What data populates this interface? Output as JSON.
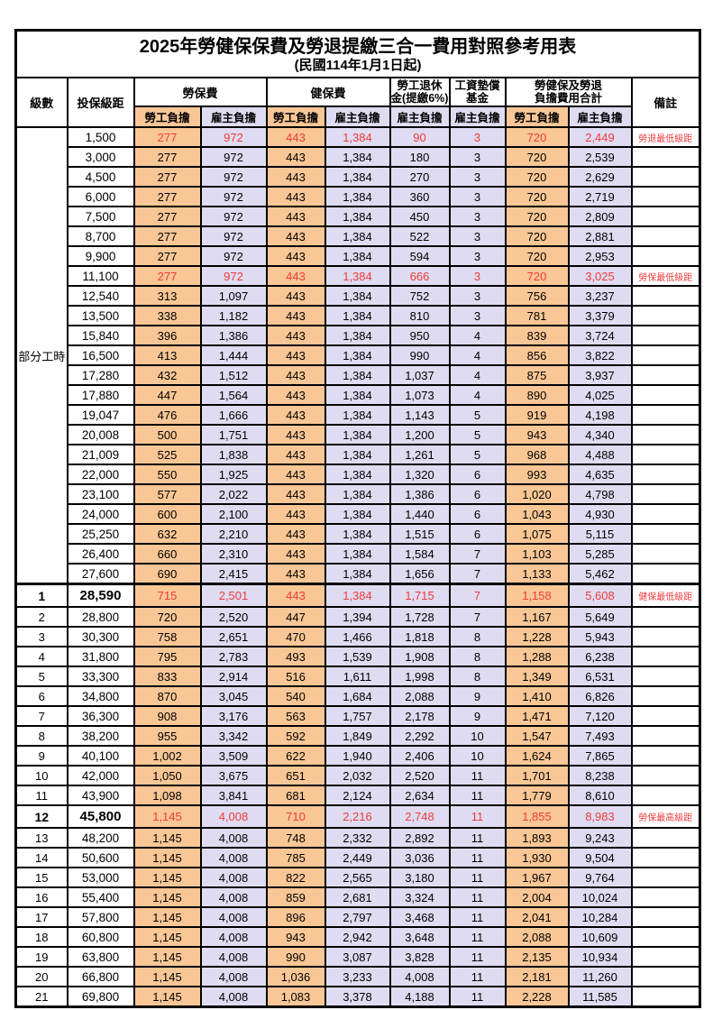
{
  "title": "2025年勞健保保費及勞退提繳三合一費用對照參考用表",
  "subtitle": "(民國114年1月1日起)",
  "header": {
    "level": "級數",
    "bracket": "投保級距",
    "labor_group": "勞保費",
    "health_group": "健保費",
    "pension_line1": "勞工退休",
    "pension_line2": "金(提繳6%)",
    "fund_line1": "工資墊償",
    "fund_line2": "基金",
    "total_line1": "勞健保及勞退",
    "total_line2": "負擔費用合計",
    "remark": "備註",
    "employee": "勞工負擔",
    "employer": "雇主負擔"
  },
  "groups": {
    "part_time_label": "部分工時"
  },
  "part_time_rowspan": 23,
  "colors": {
    "employee_fill": "#F9C795",
    "employer_fill": "#DFDCF1",
    "highlight_red": "#EE3B3B",
    "border": "#000000"
  },
  "rows": [
    {
      "level": "",
      "bracket": "1,500",
      "values": [
        "277",
        "972",
        "443",
        "1,384",
        "90",
        "3",
        "720",
        "2,449"
      ],
      "remark": "勞退最低級距",
      "red": true,
      "bold": false
    },
    {
      "level": "",
      "bracket": "3,000",
      "values": [
        "277",
        "972",
        "443",
        "1,384",
        "180",
        "3",
        "720",
        "2,539"
      ],
      "remark": "",
      "red": false,
      "bold": false
    },
    {
      "level": "",
      "bracket": "4,500",
      "values": [
        "277",
        "972",
        "443",
        "1,384",
        "270",
        "3",
        "720",
        "2,629"
      ],
      "remark": "",
      "red": false,
      "bold": false
    },
    {
      "level": "",
      "bracket": "6,000",
      "values": [
        "277",
        "972",
        "443",
        "1,384",
        "360",
        "3",
        "720",
        "2,719"
      ],
      "remark": "",
      "red": false,
      "bold": false
    },
    {
      "level": "",
      "bracket": "7,500",
      "values": [
        "277",
        "972",
        "443",
        "1,384",
        "450",
        "3",
        "720",
        "2,809"
      ],
      "remark": "",
      "red": false,
      "bold": false
    },
    {
      "level": "",
      "bracket": "8,700",
      "values": [
        "277",
        "972",
        "443",
        "1,384",
        "522",
        "3",
        "720",
        "2,881"
      ],
      "remark": "",
      "red": false,
      "bold": false
    },
    {
      "level": "",
      "bracket": "9,900",
      "values": [
        "277",
        "972",
        "443",
        "1,384",
        "594",
        "3",
        "720",
        "2,953"
      ],
      "remark": "",
      "red": false,
      "bold": false
    },
    {
      "level": "",
      "bracket": "11,100",
      "values": [
        "277",
        "972",
        "443",
        "1,384",
        "666",
        "3",
        "720",
        "3,025"
      ],
      "remark": "勞保最低級距",
      "red": true,
      "bold": false
    },
    {
      "level": "",
      "bracket": "12,540",
      "values": [
        "313",
        "1,097",
        "443",
        "1,384",
        "752",
        "3",
        "756",
        "3,237"
      ],
      "remark": "",
      "red": false,
      "bold": false
    },
    {
      "level": "",
      "bracket": "13,500",
      "values": [
        "338",
        "1,182",
        "443",
        "1,384",
        "810",
        "3",
        "781",
        "3,379"
      ],
      "remark": "",
      "red": false,
      "bold": false
    },
    {
      "level": "",
      "bracket": "15,840",
      "values": [
        "396",
        "1,386",
        "443",
        "1,384",
        "950",
        "4",
        "839",
        "3,724"
      ],
      "remark": "",
      "red": false,
      "bold": false
    },
    {
      "level": "",
      "bracket": "16,500",
      "values": [
        "413",
        "1,444",
        "443",
        "1,384",
        "990",
        "4",
        "856",
        "3,822"
      ],
      "remark": "",
      "red": false,
      "bold": false
    },
    {
      "level": "",
      "bracket": "17,280",
      "values": [
        "432",
        "1,512",
        "443",
        "1,384",
        "1,037",
        "4",
        "875",
        "3,937"
      ],
      "remark": "",
      "red": false,
      "bold": false
    },
    {
      "level": "",
      "bracket": "17,880",
      "values": [
        "447",
        "1,564",
        "443",
        "1,384",
        "1,073",
        "4",
        "890",
        "4,025"
      ],
      "remark": "",
      "red": false,
      "bold": false
    },
    {
      "level": "",
      "bracket": "19,047",
      "values": [
        "476",
        "1,666",
        "443",
        "1,384",
        "1,143",
        "5",
        "919",
        "4,198"
      ],
      "remark": "",
      "red": false,
      "bold": false
    },
    {
      "level": "",
      "bracket": "20,008",
      "values": [
        "500",
        "1,751",
        "443",
        "1,384",
        "1,200",
        "5",
        "943",
        "4,340"
      ],
      "remark": "",
      "red": false,
      "bold": false
    },
    {
      "level": "",
      "bracket": "21,009",
      "values": [
        "525",
        "1,838",
        "443",
        "1,384",
        "1,261",
        "5",
        "968",
        "4,488"
      ],
      "remark": "",
      "red": false,
      "bold": false
    },
    {
      "level": "",
      "bracket": "22,000",
      "values": [
        "550",
        "1,925",
        "443",
        "1,384",
        "1,320",
        "6",
        "993",
        "4,635"
      ],
      "remark": "",
      "red": false,
      "bold": false
    },
    {
      "level": "",
      "bracket": "23,100",
      "values": [
        "577",
        "2,022",
        "443",
        "1,384",
        "1,386",
        "6",
        "1,020",
        "4,798"
      ],
      "remark": "",
      "red": false,
      "bold": false
    },
    {
      "level": "",
      "bracket": "24,000",
      "values": [
        "600",
        "2,100",
        "443",
        "1,384",
        "1,440",
        "6",
        "1,043",
        "4,930"
      ],
      "remark": "",
      "red": false,
      "bold": false
    },
    {
      "level": "",
      "bracket": "25,250",
      "values": [
        "632",
        "2,210",
        "443",
        "1,384",
        "1,515",
        "6",
        "1,075",
        "5,115"
      ],
      "remark": "",
      "red": false,
      "bold": false
    },
    {
      "level": "",
      "bracket": "26,400",
      "values": [
        "660",
        "2,310",
        "443",
        "1,384",
        "1,584",
        "7",
        "1,103",
        "5,285"
      ],
      "remark": "",
      "red": false,
      "bold": false
    },
    {
      "level": "",
      "bracket": "27,600",
      "values": [
        "690",
        "2,415",
        "443",
        "1,384",
        "1,656",
        "7",
        "1,133",
        "5,462"
      ],
      "remark": "",
      "red": false,
      "bold": false
    },
    {
      "level": "1",
      "bracket": "28,590",
      "values": [
        "715",
        "2,501",
        "443",
        "1,384",
        "1,715",
        "7",
        "1,158",
        "5,608"
      ],
      "remark": "健保最低級距",
      "red": true,
      "bold": true
    },
    {
      "level": "2",
      "bracket": "28,800",
      "values": [
        "720",
        "2,520",
        "447",
        "1,394",
        "1,728",
        "7",
        "1,167",
        "5,649"
      ],
      "remark": "",
      "red": false,
      "bold": false
    },
    {
      "level": "3",
      "bracket": "30,300",
      "values": [
        "758",
        "2,651",
        "470",
        "1,466",
        "1,818",
        "8",
        "1,228",
        "5,943"
      ],
      "remark": "",
      "red": false,
      "bold": false
    },
    {
      "level": "4",
      "bracket": "31,800",
      "values": [
        "795",
        "2,783",
        "493",
        "1,539",
        "1,908",
        "8",
        "1,288",
        "6,238"
      ],
      "remark": "",
      "red": false,
      "bold": false
    },
    {
      "level": "5",
      "bracket": "33,300",
      "values": [
        "833",
        "2,914",
        "516",
        "1,611",
        "1,998",
        "8",
        "1,349",
        "6,531"
      ],
      "remark": "",
      "red": false,
      "bold": false
    },
    {
      "level": "6",
      "bracket": "34,800",
      "values": [
        "870",
        "3,045",
        "540",
        "1,684",
        "2,088",
        "9",
        "1,410",
        "6,826"
      ],
      "remark": "",
      "red": false,
      "bold": false
    },
    {
      "level": "7",
      "bracket": "36,300",
      "values": [
        "908",
        "3,176",
        "563",
        "1,757",
        "2,178",
        "9",
        "1,471",
        "7,120"
      ],
      "remark": "",
      "red": false,
      "bold": false
    },
    {
      "level": "8",
      "bracket": "38,200",
      "values": [
        "955",
        "3,342",
        "592",
        "1,849",
        "2,292",
        "10",
        "1,547",
        "7,493"
      ],
      "remark": "",
      "red": false,
      "bold": false
    },
    {
      "level": "9",
      "bracket": "40,100",
      "values": [
        "1,002",
        "3,509",
        "622",
        "1,940",
        "2,406",
        "10",
        "1,624",
        "7,865"
      ],
      "remark": "",
      "red": false,
      "bold": false
    },
    {
      "level": "10",
      "bracket": "42,000",
      "values": [
        "1,050",
        "3,675",
        "651",
        "2,032",
        "2,520",
        "11",
        "1,701",
        "8,238"
      ],
      "remark": "",
      "red": false,
      "bold": false
    },
    {
      "level": "11",
      "bracket": "43,900",
      "values": [
        "1,098",
        "3,841",
        "681",
        "2,124",
        "2,634",
        "11",
        "1,779",
        "8,610"
      ],
      "remark": "",
      "red": false,
      "bold": false
    },
    {
      "level": "12",
      "bracket": "45,800",
      "values": [
        "1,145",
        "4,008",
        "710",
        "2,216",
        "2,748",
        "11",
        "1,855",
        "8,983"
      ],
      "remark": "勞保最高級距",
      "red": true,
      "bold": true
    },
    {
      "level": "13",
      "bracket": "48,200",
      "values": [
        "1,145",
        "4,008",
        "748",
        "2,332",
        "2,892",
        "11",
        "1,893",
        "9,243"
      ],
      "remark": "",
      "red": false,
      "bold": false
    },
    {
      "level": "14",
      "bracket": "50,600",
      "values": [
        "1,145",
        "4,008",
        "785",
        "2,449",
        "3,036",
        "11",
        "1,930",
        "9,504"
      ],
      "remark": "",
      "red": false,
      "bold": false
    },
    {
      "level": "15",
      "bracket": "53,000",
      "values": [
        "1,145",
        "4,008",
        "822",
        "2,565",
        "3,180",
        "11",
        "1,967",
        "9,764"
      ],
      "remark": "",
      "red": false,
      "bold": false
    },
    {
      "level": "16",
      "bracket": "55,400",
      "values": [
        "1,145",
        "4,008",
        "859",
        "2,681",
        "3,324",
        "11",
        "2,004",
        "10,024"
      ],
      "remark": "",
      "red": false,
      "bold": false
    },
    {
      "level": "17",
      "bracket": "57,800",
      "values": [
        "1,145",
        "4,008",
        "896",
        "2,797",
        "3,468",
        "11",
        "2,041",
        "10,284"
      ],
      "remark": "",
      "red": false,
      "bold": false
    },
    {
      "level": "18",
      "bracket": "60,800",
      "values": [
        "1,145",
        "4,008",
        "943",
        "2,942",
        "3,648",
        "11",
        "2,088",
        "10,609"
      ],
      "remark": "",
      "red": false,
      "bold": false
    },
    {
      "level": "19",
      "bracket": "63,800",
      "values": [
        "1,145",
        "4,008",
        "990",
        "3,087",
        "3,828",
        "11",
        "2,135",
        "10,934"
      ],
      "remark": "",
      "red": false,
      "bold": false
    },
    {
      "level": "20",
      "bracket": "66,800",
      "values": [
        "1,145",
        "4,008",
        "1,036",
        "3,233",
        "4,008",
        "11",
        "2,181",
        "11,260"
      ],
      "remark": "",
      "red": false,
      "bold": false
    },
    {
      "level": "21",
      "bracket": "69,800",
      "values": [
        "1,145",
        "4,008",
        "1,083",
        "3,378",
        "4,188",
        "11",
        "2,228",
        "11,585"
      ],
      "remark": "",
      "red": false,
      "bold": false
    }
  ]
}
